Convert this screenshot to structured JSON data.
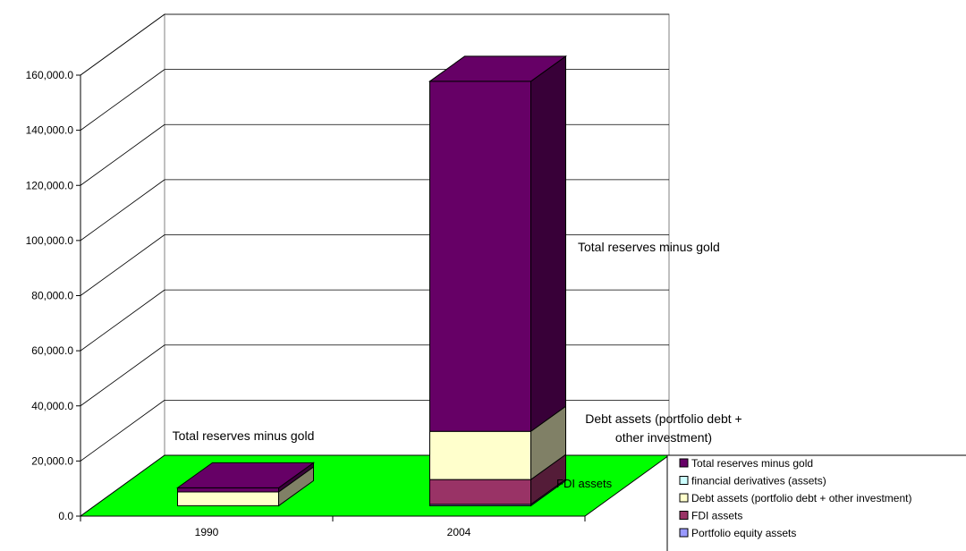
{
  "chart_data": {
    "type": "bar",
    "stacked": true,
    "three_d": true,
    "categories": [
      "1990",
      "2004"
    ],
    "series": [
      {
        "name": "Portfolio equity assets",
        "color": "#9999ff",
        "values": [
          0,
          500
        ]
      },
      {
        "name": "FDI assets",
        "color": "#993366",
        "values": [
          0,
          9000
        ]
      },
      {
        "name": "Debt assets (portfolio debt + other investment)",
        "color": "#ffffcc",
        "values": [
          5000,
          17500
        ]
      },
      {
        "name": "financial derivatives (assets)",
        "color": "#ccffff",
        "values": [
          0,
          0
        ]
      },
      {
        "name": "Total reserves minus gold",
        "color": "#660066",
        "values": [
          1500,
          127000
        ]
      }
    ],
    "ylim": [
      0,
      160000
    ],
    "yticks": [
      "0.0",
      "20,000.0",
      "40,000.0",
      "60,000.0",
      "80,000.0",
      "100,000.0",
      "120,000.0",
      "140,000.0",
      "160,000.0"
    ],
    "grid": true,
    "floor_color": "#00ff00",
    "legend_position": "bottom-right",
    "annotations": [
      {
        "text": "Total reserves minus gold",
        "category": "1990",
        "series": "Total reserves minus gold"
      },
      {
        "text": "Total reserves minus gold",
        "category": "2004",
        "series": "Total reserves minus gold"
      },
      {
        "text": "Debt assets (portfolio debt +",
        "category": "2004",
        "series": "Debt assets (portfolio debt + other investment)"
      },
      {
        "text": "other investment)",
        "category": "2004",
        "series": "Debt assets (portfolio debt + other investment)"
      },
      {
        "text": "FDI assets",
        "category": "2004",
        "series": "FDI assets"
      }
    ],
    "legend": [
      "Total reserves minus gold",
      "financial derivatives (assets)",
      "Debt assets (portfolio debt + other investment)",
      "FDI assets",
      "Portfolio equity assets"
    ],
    "legend_colors": [
      "#660066",
      "#ccffff",
      "#ffffcc",
      "#993366",
      "#9999ff"
    ]
  }
}
